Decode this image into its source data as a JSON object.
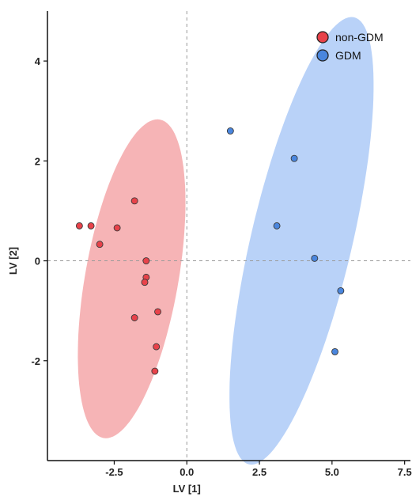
{
  "chart_data": {
    "type": "scatter",
    "xlabel": "LV [1]",
    "ylabel": "LV [2]",
    "xlim": [
      -4.8,
      7.7
    ],
    "ylim": [
      -4.0,
      5.0
    ],
    "xticks": [
      -2.5,
      0.0,
      2.5,
      5.0,
      7.5
    ],
    "xtick_labels": [
      "-2.5",
      "0.0",
      "2.5",
      "5.0",
      "7.5"
    ],
    "yticks": [
      -2,
      0,
      2,
      4
    ],
    "ytick_labels": [
      "-2",
      "0",
      "2",
      "4"
    ],
    "grid": false,
    "reference_lines": [
      {
        "axis": "x",
        "value": 0
      },
      {
        "axis": "y",
        "value": 0
      }
    ],
    "legend_position": "top-right",
    "series": [
      {
        "name": "non-GDM",
        "color": "#e8424a",
        "ellipse_color": "#f4a3a6",
        "points": [
          {
            "x": -3.7,
            "y": 0.7
          },
          {
            "x": -3.3,
            "y": 0.7
          },
          {
            "x": -3.0,
            "y": 0.33
          },
          {
            "x": -2.4,
            "y": 0.66
          },
          {
            "x": -1.8,
            "y": 1.2
          },
          {
            "x": -1.4,
            "y": 0.0
          },
          {
            "x": -1.4,
            "y": -0.33
          },
          {
            "x": -1.45,
            "y": -0.43
          },
          {
            "x": -1.0,
            "y": -1.02
          },
          {
            "x": -1.8,
            "y": -1.14
          },
          {
            "x": -1.05,
            "y": -1.72
          },
          {
            "x": -1.1,
            "y": -2.21
          }
        ],
        "ellipse": {
          "cx": -1.9,
          "cy": -0.36,
          "rx": 1.55,
          "ry": 3.35,
          "angle_deg": 20
        }
      },
      {
        "name": "GDM",
        "color": "#4a86de",
        "ellipse_color": "#a9c8f6",
        "points": [
          {
            "x": 1.5,
            "y": 2.6
          },
          {
            "x": 3.7,
            "y": 2.05
          },
          {
            "x": 3.1,
            "y": 0.7
          },
          {
            "x": 4.4,
            "y": 0.05
          },
          {
            "x": 5.3,
            "y": -0.6
          },
          {
            "x": 5.1,
            "y": -1.82
          }
        ],
        "ellipse": {
          "cx": 3.95,
          "cy": 0.4,
          "rx": 1.65,
          "ry": 4.85,
          "angle_deg": 24
        }
      }
    ]
  }
}
